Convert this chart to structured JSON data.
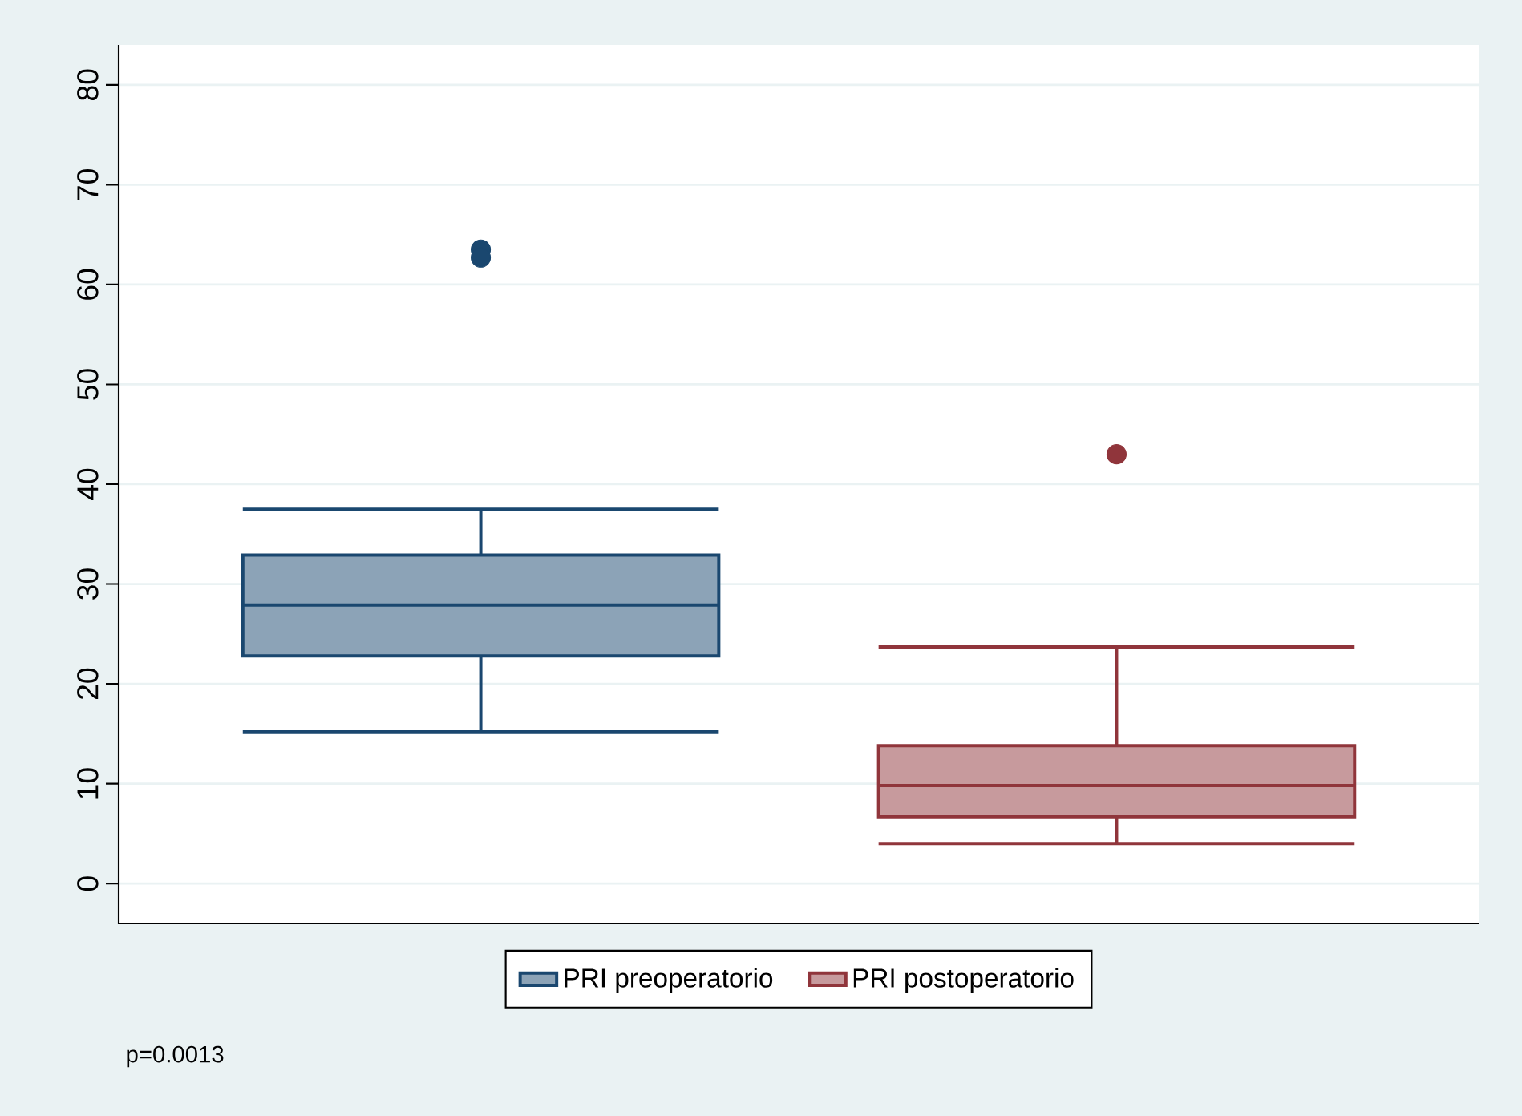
{
  "chart_data": {
    "type": "box",
    "categories": [
      null
    ],
    "series": [
      {
        "name": "PRI preoperatorio",
        "color": "#1a476f",
        "boxes": [
          {
            "low": 15.2,
            "q1": 22.8,
            "median": 27.9,
            "q3": 32.9,
            "high": 37.5,
            "outliers": [
              63.5,
              62.7
            ]
          }
        ]
      },
      {
        "name": "PRI postoperatorio",
        "color": "#90353b",
        "boxes": [
          {
            "low": 4.0,
            "q1": 6.7,
            "median": 9.8,
            "q3": 13.8,
            "high": 23.7,
            "outliers": [
              43
            ]
          }
        ]
      }
    ],
    "ylim": [
      -4,
      84
    ],
    "yticks": [
      0,
      10,
      20,
      30,
      40,
      50,
      60,
      70,
      80
    ],
    "grid": "y",
    "legend": "bottom",
    "tick_labels": "y",
    "annotations": [
      "p=0.0013"
    ]
  }
}
